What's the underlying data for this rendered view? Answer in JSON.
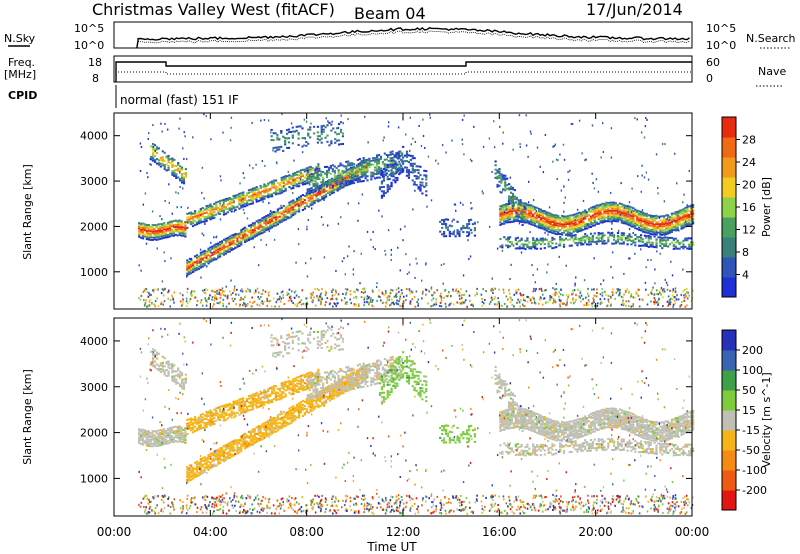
{
  "header": {
    "station": "Christmas Valley West (fitACF)",
    "beam": "Beam 04",
    "date": "17/Jun/2014"
  },
  "top_panels": {
    "nsky_label": "N.Sky",
    "nsearch_label": "N.Search",
    "nsky_ticks": [
      "10^5",
      "10^0"
    ],
    "nsearch_ticks": [
      "10^5",
      "10^0"
    ],
    "freq_label_1": "Freq.",
    "freq_label_2": "[MHz]",
    "freq_ticks": [
      "18",
      "8"
    ],
    "nave_label": "Nave",
    "nave_ticks": [
      "60",
      "0"
    ],
    "cpid_label": "CPID",
    "cpid_text": "normal (fast) 151 IF"
  },
  "colors": {
    "power_scale": [
      "#1f2fd8",
      "#2f55b8",
      "#3a7f78",
      "#49a060",
      "#8ed24a",
      "#f2cc1e",
      "#f29a1a",
      "#f06a14",
      "#e82a0e"
    ],
    "velocity_scale": [
      "#e21414",
      "#ef5a12",
      "#f58a14",
      "#f5b418",
      "#bfbfb4",
      "#7ccc3c",
      "#3f9f4a",
      "#3a63b3",
      "#2630b8"
    ]
  },
  "chart_data": [
    {
      "type": "heatmap",
      "title": "Power",
      "ylabel": "Slant Range [km]",
      "xlabel": "Time UT",
      "x_ticks": [
        "00:00",
        "04:00",
        "08:00",
        "12:00",
        "16:00",
        "20:00",
        "00:00"
      ],
      "y_ticks": [
        1000,
        2000,
        3000,
        4000
      ],
      "xlim_hours": [
        0,
        24
      ],
      "ylim_km": [
        180,
        4500
      ],
      "colorbar": {
        "label": "Power [dB]",
        "ticks": [
          "28",
          "24",
          "20",
          "16",
          "12",
          "8",
          "4"
        ],
        "range": [
          0,
          30
        ]
      },
      "features": [
        {
          "name": "descending band",
          "time_hours": [
            1.0,
            3.0
          ],
          "range_km": [
            1900,
            2000
          ]
        },
        {
          "name": "rising band",
          "time_hours": [
            3.0,
            10.0
          ],
          "range_km_start": 1100,
          "range_km_end": 3300
        },
        {
          "name": "upper band",
          "time_hours": [
            3.0,
            8.0
          ],
          "range_km_start": 2100,
          "range_km_end": 3200
        },
        {
          "name": "afternoon band",
          "time_hours": [
            16.0,
            24.0
          ],
          "range_km": [
            1800,
            2500
          ]
        }
      ]
    },
    {
      "type": "heatmap",
      "title": "Velocity",
      "ylabel": "Slant Range [km]",
      "xlabel": "Time UT",
      "x_ticks": [
        "00:00",
        "04:00",
        "08:00",
        "12:00",
        "16:00",
        "20:00",
        "00:00"
      ],
      "y_ticks": [
        1000,
        2000,
        3000,
        4000
      ],
      "xlim_hours": [
        0,
        24
      ],
      "ylim_km": [
        180,
        4500
      ],
      "colorbar": {
        "label": "Velocity [m s^-1]",
        "ticks": [
          "200",
          "100",
          "50",
          "15",
          "-15",
          "-50",
          "-100",
          "-200"
        ],
        "range": [
          -250,
          250
        ]
      }
    }
  ]
}
